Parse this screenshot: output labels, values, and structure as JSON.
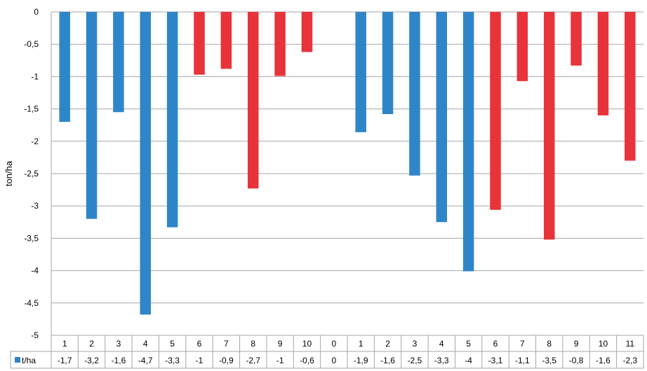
{
  "chart_data": {
    "type": "bar",
    "ylabel": "ton/ha",
    "ylim": [
      -5,
      0
    ],
    "yticks": [
      "0",
      "-0,5",
      "-1",
      "-1,5",
      "-2",
      "-2,5",
      "-3",
      "-3,5",
      "-4",
      "-4,5",
      "-5"
    ],
    "grid": true,
    "legend": "table-left",
    "categories": [
      "1",
      "2",
      "3",
      "4",
      "5",
      "6",
      "7",
      "8",
      "9",
      "10",
      "0",
      "1",
      "2",
      "3",
      "4",
      "5",
      "6",
      "7",
      "8",
      "9",
      "10",
      "11"
    ],
    "series": [
      {
        "name": "t/ha",
        "values": [
          -1.7,
          -3.2,
          -1.55,
          -4.68,
          -3.33,
          -0.97,
          -0.88,
          -2.73,
          -0.99,
          -0.62,
          0,
          -1.86,
          -1.58,
          -2.53,
          -3.25,
          -4.01,
          -3.06,
          -1.07,
          -3.52,
          -0.83,
          -1.6,
          -2.3
        ],
        "labels": [
          "-1,7",
          "-3,2",
          "-1,6",
          "-4,7",
          "-3,3",
          "-1",
          "-0,9",
          "-2,7",
          "-1",
          "-0,6",
          "0",
          "-1,9",
          "-1,6",
          "-2,5",
          "-3,3",
          "-4",
          "-3,1",
          "-1,1",
          "-3,5",
          "-0,8",
          "-1,6",
          "-2,3"
        ],
        "colors": [
          "#2e86c8",
          "#2e86c8",
          "#2e86c8",
          "#2e86c8",
          "#2e86c8",
          "#e8333a",
          "#e8333a",
          "#e8333a",
          "#e8333a",
          "#e8333a",
          "#2e86c8",
          "#2e86c8",
          "#2e86c8",
          "#2e86c8",
          "#2e86c8",
          "#2e86c8",
          "#e8333a",
          "#e8333a",
          "#e8333a",
          "#e8333a",
          "#e8333a",
          "#e8333a"
        ]
      }
    ],
    "legend_color": "#2e86c8",
    "grid_color": "#a6a6a6"
  }
}
